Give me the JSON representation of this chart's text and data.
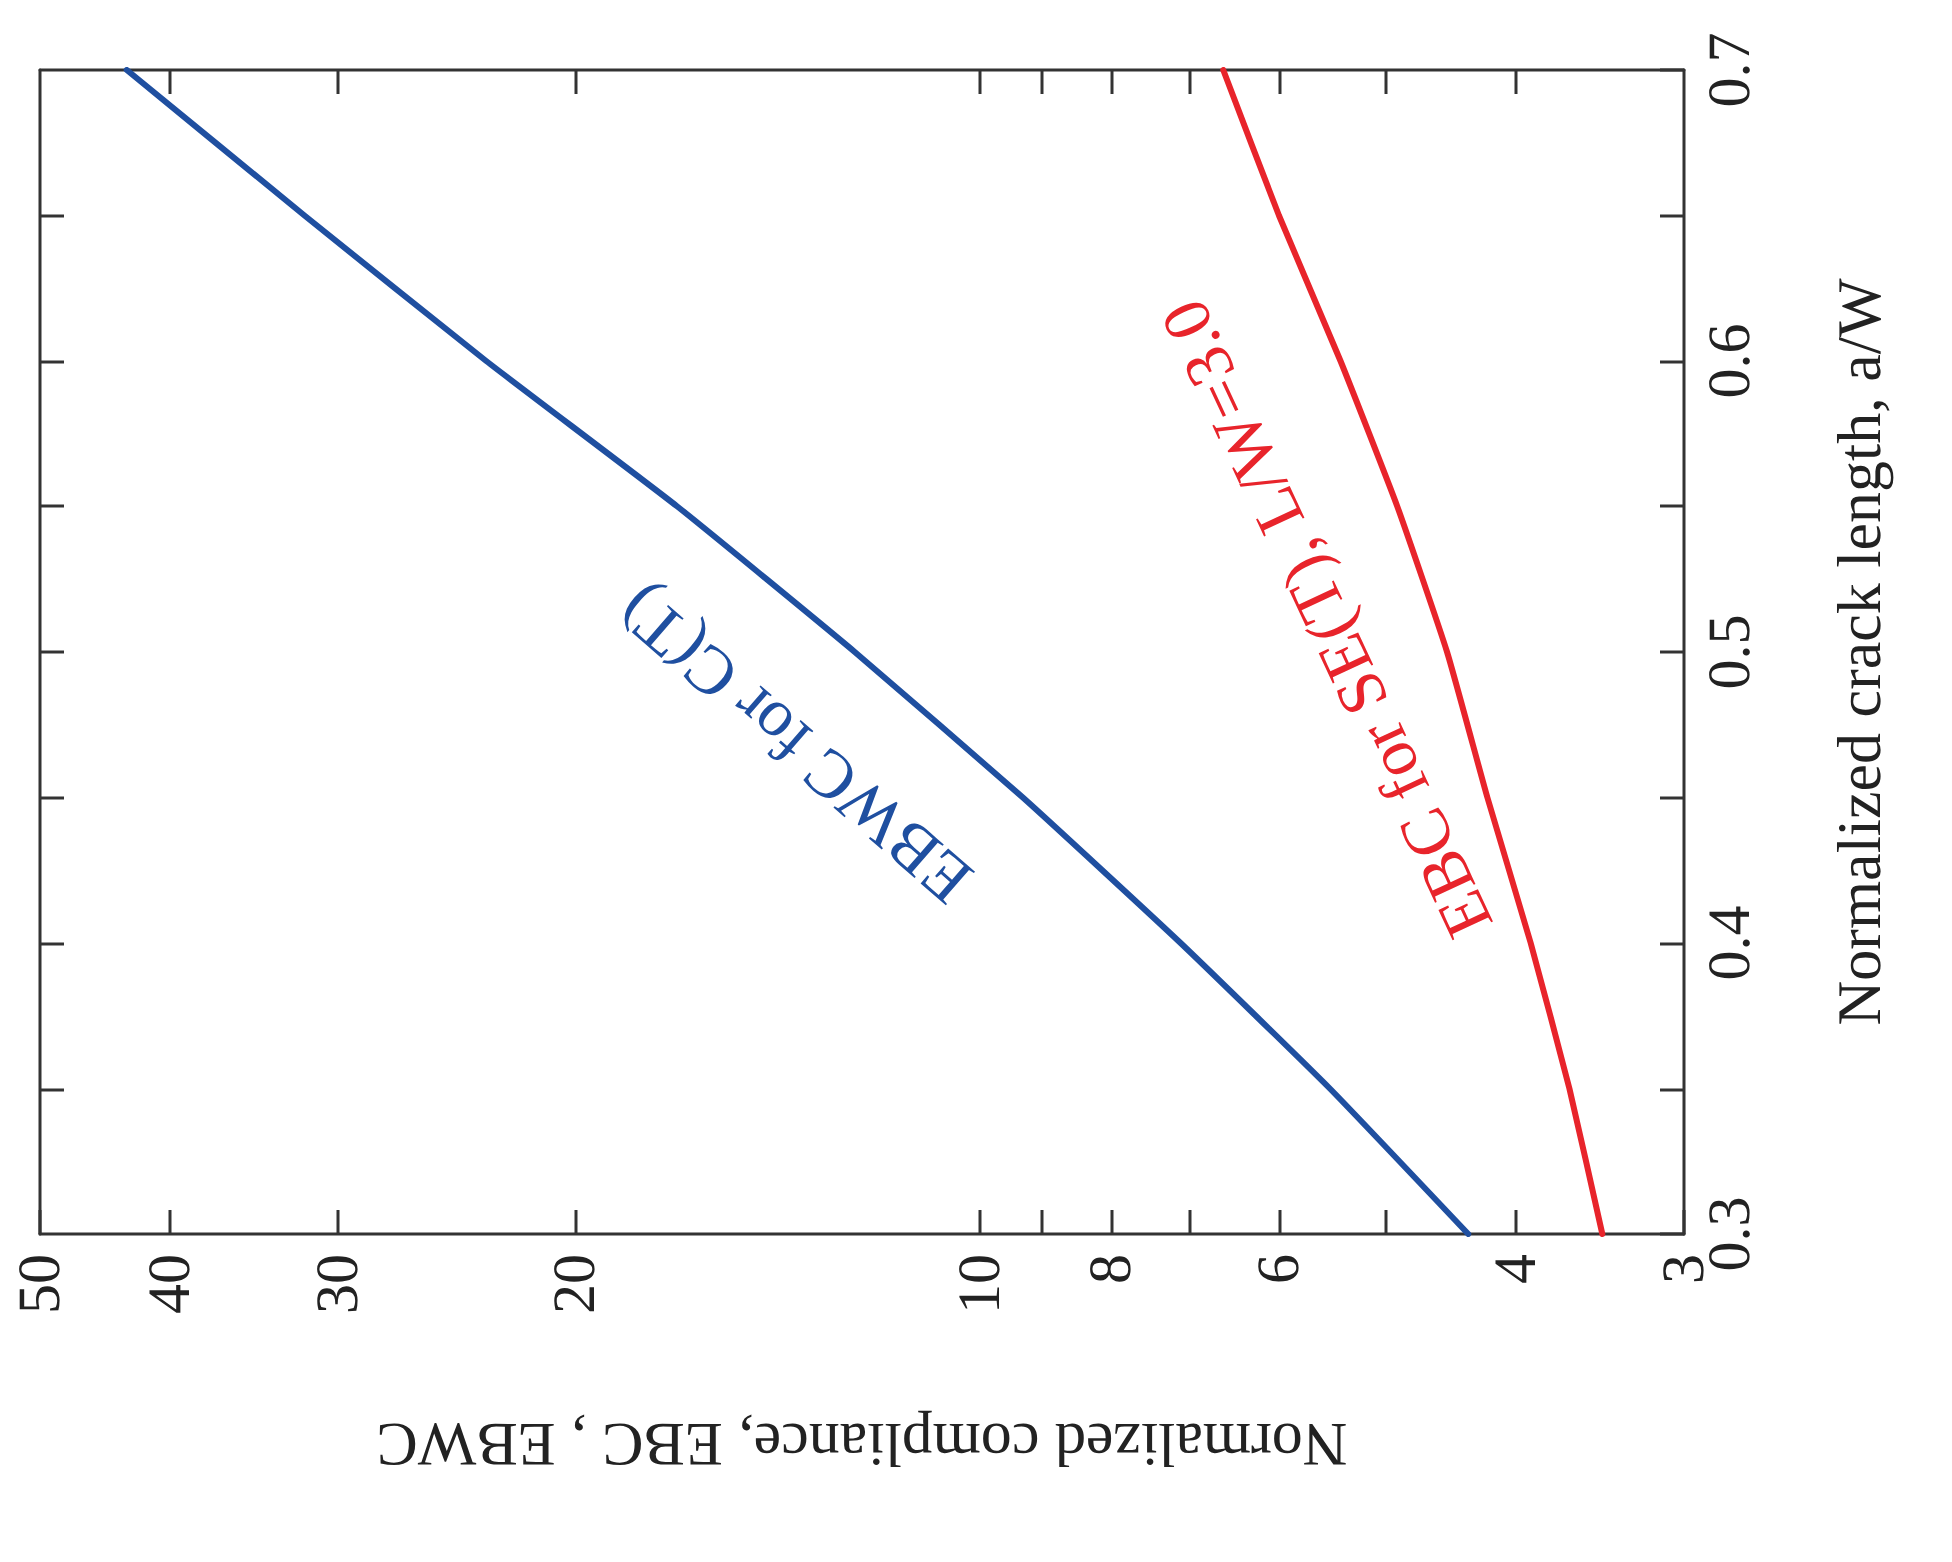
{
  "chart_data": {
    "type": "line",
    "xlabel": "Normalized compliance, EBC , EBWC",
    "ylabel": "Normalized crack length, a/W",
    "series": [
      {
        "color": "#1f4fa0",
        "x": [
          4.34,
          5.5,
          7.1,
          9.3,
          12.4,
          16.8,
          23.3,
          31.8,
          43.1
        ],
        "values": [
          0.3,
          0.35,
          0.4,
          0.45,
          0.5,
          0.55,
          0.6,
          0.65,
          0.7
        ]
      },
      {
        "color": "#e8242b",
        "x": [
          3.45,
          3.65,
          3.9,
          4.2,
          4.5,
          4.9,
          5.4,
          6.0,
          6.6
        ],
        "values": [
          0.3,
          0.35,
          0.4,
          0.45,
          0.5,
          0.55,
          0.6,
          0.65,
          0.7
        ]
      }
    ],
    "annotations": [
      "EBWC for C(T)",
      "EBC for SE(T), L/W=3.0"
    ],
    "log": "x",
    "xlim": [
      50,
      3
    ],
    "xticks": [
      3,
      4,
      {
        "value": 5,
        "label": null
      },
      6,
      {
        "value": 7,
        "label": null
      },
      8,
      {
        "value": 9,
        "label": null
      },
      10,
      20,
      30,
      40,
      50
    ],
    "ylim": [
      0.3,
      0.7
    ],
    "yticks": [
      0.3,
      {
        "value": 0.35,
        "label": null
      },
      0.4,
      {
        "value": 0.45,
        "label": null
      },
      0.5,
      {
        "value": 0.55,
        "label": null
      },
      0.6,
      {
        "value": 0.65,
        "label": null
      },
      0.7
    ],
    "grid": false,
    "marker": "none",
    "line_style": "solid"
  }
}
